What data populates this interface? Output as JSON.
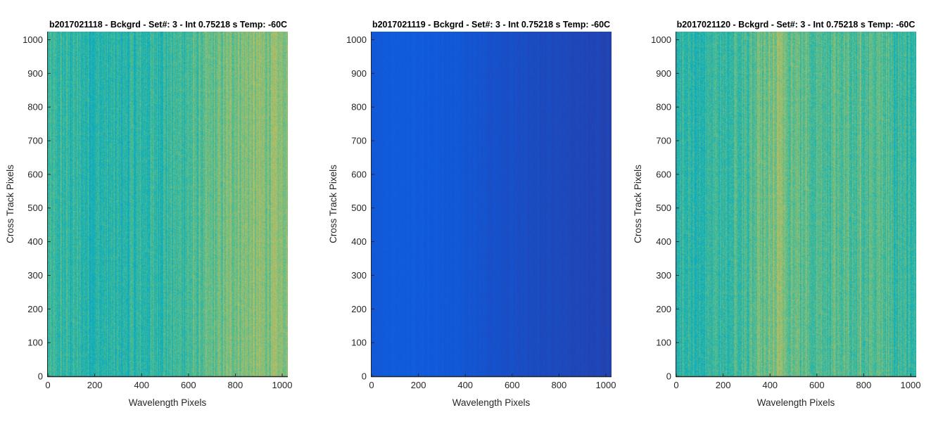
{
  "chart_data": [
    {
      "type": "heatmap",
      "title": "b2017021118 - Bckgrd - Set#: 3 - Int 0.75218 s Temp: -60C",
      "xlabel": "Wavelength Pixels",
      "ylabel": "Cross Track Pixels",
      "xlim": [
        0,
        1024
      ],
      "ylim": [
        0,
        1024
      ],
      "xticks": [
        0,
        200,
        400,
        600,
        800,
        1000
      ],
      "yticks": [
        0,
        100,
        200,
        300,
        400,
        500,
        600,
        700,
        800,
        900,
        1000
      ],
      "colormap": "parula",
      "column_profile": {
        "x": [
          0,
          100,
          200,
          300,
          400,
          500,
          600,
          700,
          800,
          900,
          1024
        ],
        "level": [
          0.44,
          0.44,
          0.42,
          0.42,
          0.43,
          0.45,
          0.47,
          0.5,
          0.55,
          0.56,
          0.56
        ]
      },
      "noise": 0.09
    },
    {
      "type": "heatmap",
      "title": "b2017021119 - Bckgrd - Set#: 3 - Int 0.75218 s Temp: -60C",
      "xlabel": "Wavelength Pixels",
      "ylabel": "Cross Track Pixels",
      "xlim": [
        0,
        1024
      ],
      "ylim": [
        0,
        1024
      ],
      "xticks": [
        0,
        200,
        400,
        600,
        800,
        1000
      ],
      "yticks": [
        0,
        100,
        200,
        300,
        400,
        500,
        600,
        700,
        800,
        900,
        1000
      ],
      "colormap": "parula",
      "column_profile": {
        "x": [
          0,
          100,
          200,
          300,
          400,
          500,
          600,
          700,
          800,
          900,
          1024
        ],
        "level": [
          0.095,
          0.1,
          0.1,
          0.095,
          0.09,
          0.08,
          0.075,
          0.068,
          0.062,
          0.058,
          0.05
        ]
      },
      "noise": 0.01
    },
    {
      "type": "heatmap",
      "title": "b2017021120 - Bckgrd - Set#: 3 - Int 0.75218 s Temp: -60C",
      "xlabel": "Wavelength Pixels",
      "ylabel": "Cross Track Pixels",
      "xlim": [
        0,
        1024
      ],
      "ylim": [
        0,
        1024
      ],
      "xticks": [
        0,
        200,
        400,
        600,
        800,
        1000
      ],
      "yticks": [
        0,
        100,
        200,
        300,
        400,
        500,
        600,
        700,
        800,
        900,
        1000
      ],
      "colormap": "parula",
      "column_profile": {
        "x": [
          0,
          100,
          200,
          300,
          400,
          450,
          500,
          600,
          700,
          800,
          900,
          1024
        ],
        "level": [
          0.43,
          0.43,
          0.44,
          0.47,
          0.53,
          0.56,
          0.52,
          0.49,
          0.5,
          0.5,
          0.47,
          0.45
        ]
      },
      "noise": 0.1
    }
  ]
}
